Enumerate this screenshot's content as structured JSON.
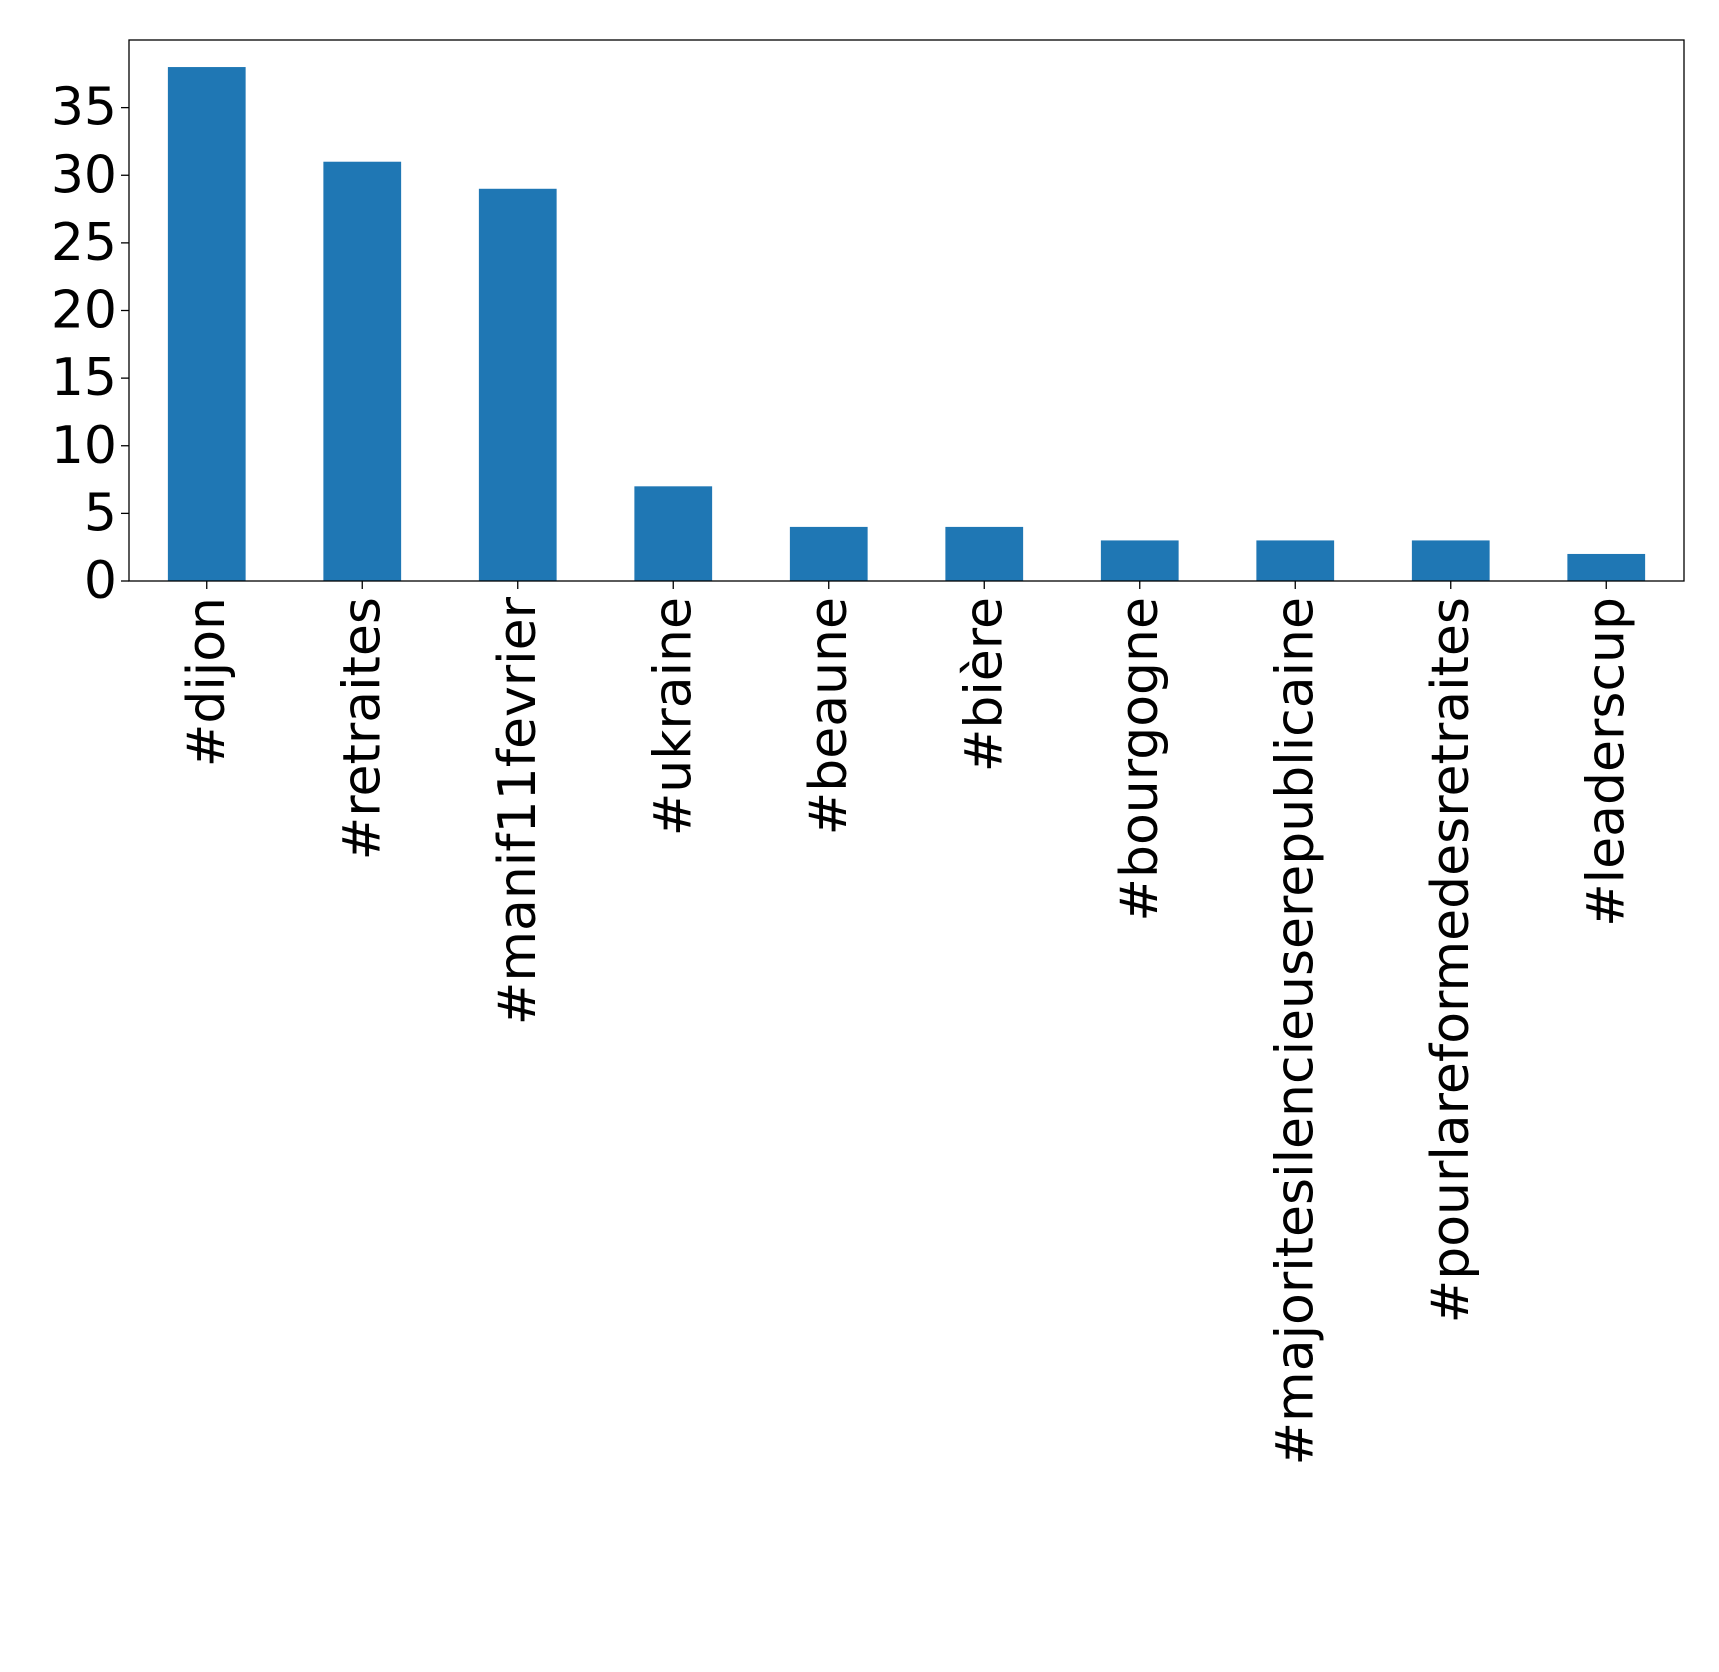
{
  "chart_data": {
    "type": "bar",
    "title": "",
    "xlabel": "",
    "ylabel": "",
    "categories": [
      "#dijon",
      "#retraites",
      "#manif11fevrier",
      "#ukraine",
      "#beaune",
      "#bière",
      "#bourgogne",
      "#majoritesilencieuserepublicaine",
      "#pourlareformedesretraites",
      "#leaderscup"
    ],
    "series": [
      {
        "values": [
          38,
          31,
          29,
          7,
          4,
          4,
          3,
          3,
          3,
          2
        ]
      }
    ],
    "ylim": [
      0,
      40
    ],
    "yticks": [
      "0",
      "5",
      "10",
      "15",
      "20",
      "25",
      "30",
      "35"
    ],
    "x_tick_rotation": "vertical",
    "grid": false,
    "legend": "none"
  },
  "colors": {
    "bar": "#1f77b4",
    "axes": "#000000",
    "background": "#ffffff"
  }
}
